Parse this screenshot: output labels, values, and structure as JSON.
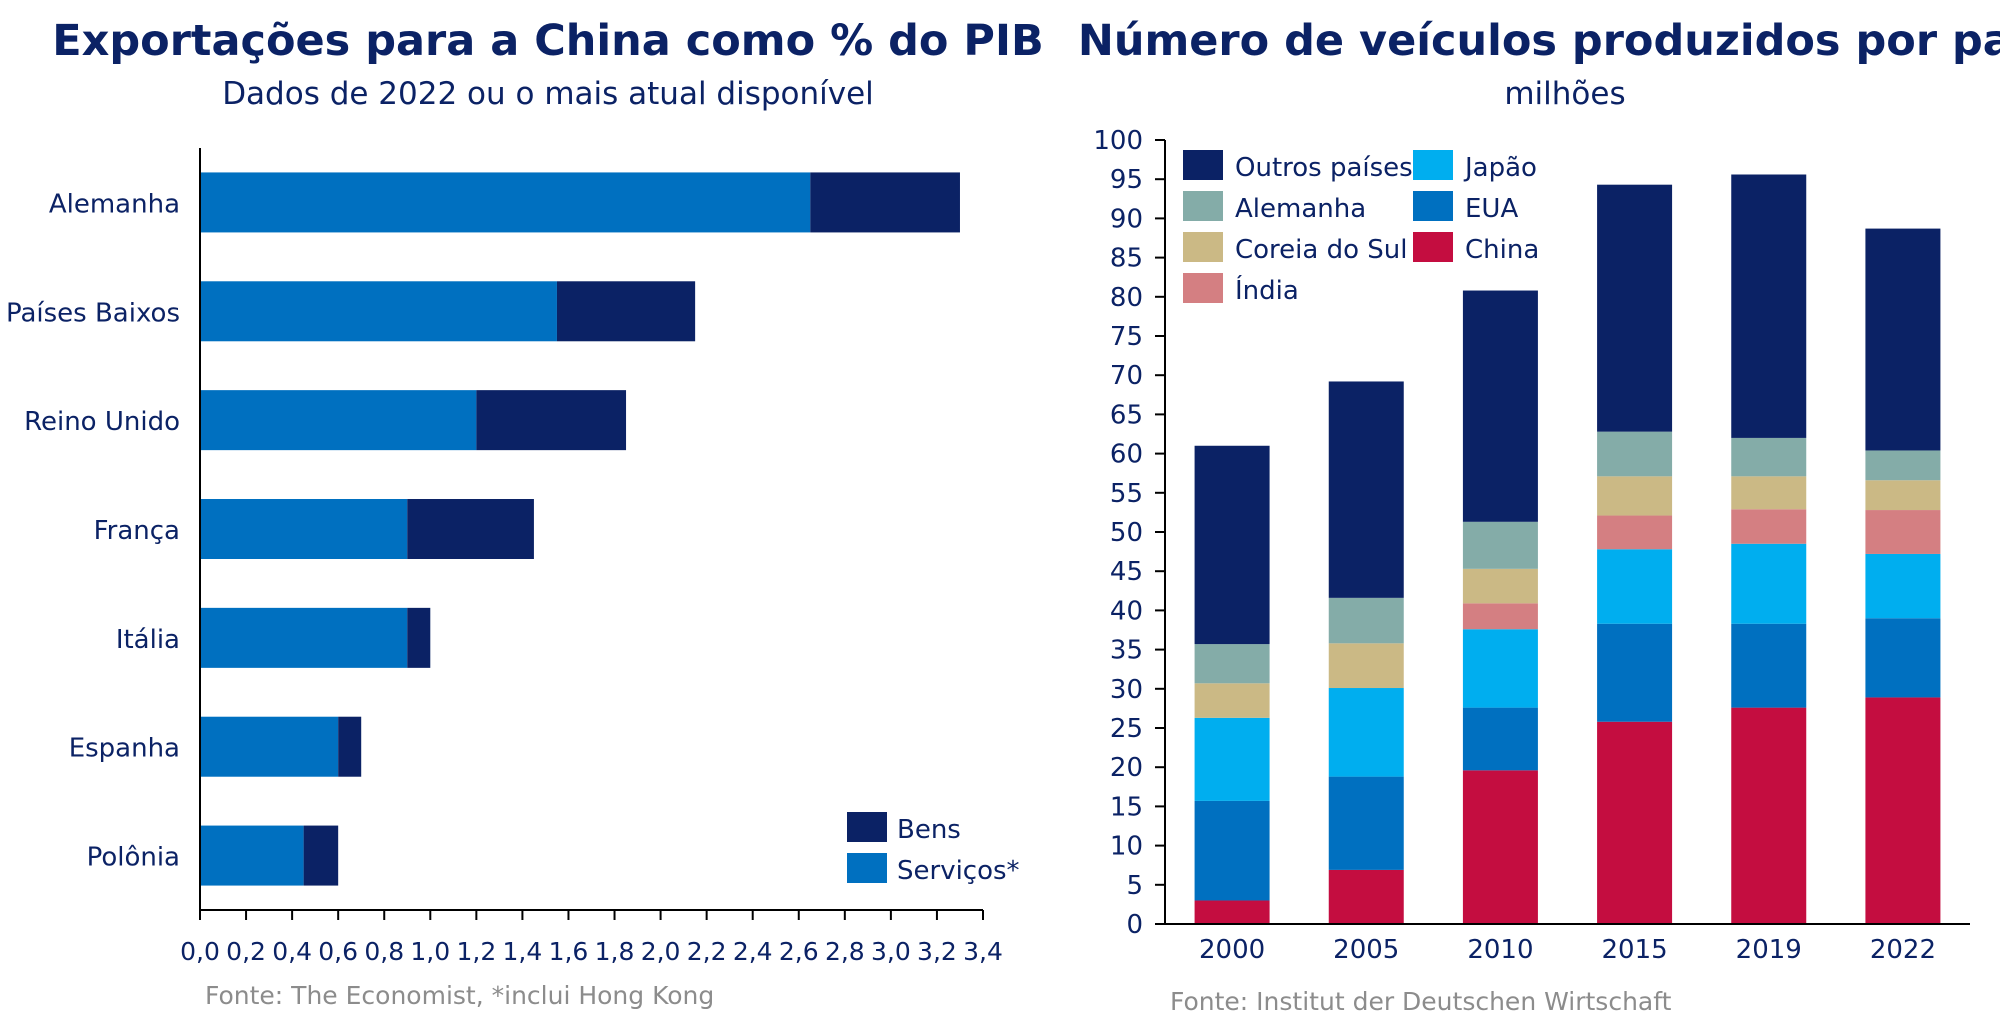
{
  "chart_data": [
    {
      "type": "bar",
      "orientation": "horizontal",
      "stacked": true,
      "title": "Exportações para a China como % do PIB",
      "subtitle": "Dados de 2022 ou o mais atual disponível",
      "categories": [
        "Alemanha",
        "Países Baixos",
        "Reino Unido",
        "França",
        "Itália",
        "Espanha",
        "Polônia"
      ],
      "series": [
        {
          "name": "Serviços*",
          "color": "#0070c0",
          "values": [
            2.65,
            1.55,
            1.2,
            0.9,
            0.9,
            0.6,
            0.45
          ]
        },
        {
          "name": "Bens",
          "color": "#0b2265",
          "values": [
            0.65,
            0.6,
            0.65,
            0.55,
            0.1,
            0.1,
            0.15
          ]
        }
      ],
      "xlim": [
        0,
        3.4
      ],
      "xticks": [
        "0,0",
        "0,2",
        "0,4",
        "0,6",
        "0,8",
        "1,0",
        "1,2",
        "1,4",
        "1,6",
        "1,8",
        "2,0",
        "2,2",
        "2,4",
        "2,6",
        "2,8",
        "3,0",
        "3,2",
        "3,4"
      ],
      "legend": {
        "placement": "bottom-right",
        "order": [
          "Bens",
          "Serviços*"
        ]
      },
      "source": "Fonte: The Economist, *inclui Hong Kong",
      "grid": false
    },
    {
      "type": "bar",
      "stacked": true,
      "title": "Número de veículos produzidos por país",
      "subtitle": "milhões",
      "categories": [
        "2000",
        "2005",
        "2010",
        "2015",
        "2019",
        "2022"
      ],
      "series": [
        {
          "name": "China",
          "color": "#c40d40",
          "values": [
            3.0,
            6.9,
            19.6,
            25.8,
            27.6,
            28.9
          ]
        },
        {
          "name": "EUA",
          "color": "#0070c0",
          "values": [
            12.7,
            11.9,
            8.0,
            12.5,
            10.7,
            10.1
          ]
        },
        {
          "name": "Japão",
          "color": "#00aeef",
          "values": [
            10.6,
            11.3,
            10.0,
            9.5,
            10.2,
            8.2
          ]
        },
        {
          "name": "Índia",
          "color": "#d47f82",
          "values": [
            0.0,
            0.0,
            3.3,
            4.3,
            4.4,
            5.6
          ]
        },
        {
          "name": "Coreia do Sul",
          "color": "#cbb985",
          "values": [
            4.4,
            5.7,
            4.4,
            5.0,
            4.2,
            3.8
          ]
        },
        {
          "name": "Alemanha",
          "color": "#84aca8",
          "values": [
            5.0,
            5.8,
            6.0,
            5.7,
            4.9,
            3.8
          ]
        },
        {
          "name": "Outros países",
          "color": "#0b2265",
          "values": [
            25.3,
            27.6,
            29.5,
            31.5,
            33.6,
            28.3
          ]
        }
      ],
      "ylim": [
        0,
        100
      ],
      "yticks": [
        0,
        5,
        10,
        15,
        20,
        25,
        30,
        35,
        40,
        45,
        50,
        55,
        60,
        65,
        70,
        75,
        80,
        85,
        90,
        95,
        100
      ],
      "legend": {
        "placement": "top-left",
        "columns": [
          [
            "Outros países",
            "Alemanha",
            "Coreia do Sul",
            "Índia"
          ],
          [
            "Japão",
            "EUA",
            "China"
          ]
        ]
      },
      "source": "Fonte: Institut der Deutschen Wirtschaft",
      "grid": false
    }
  ],
  "colors": {
    "text": "#0b2265",
    "source": "#8c8c8c",
    "axis": "#000000"
  }
}
